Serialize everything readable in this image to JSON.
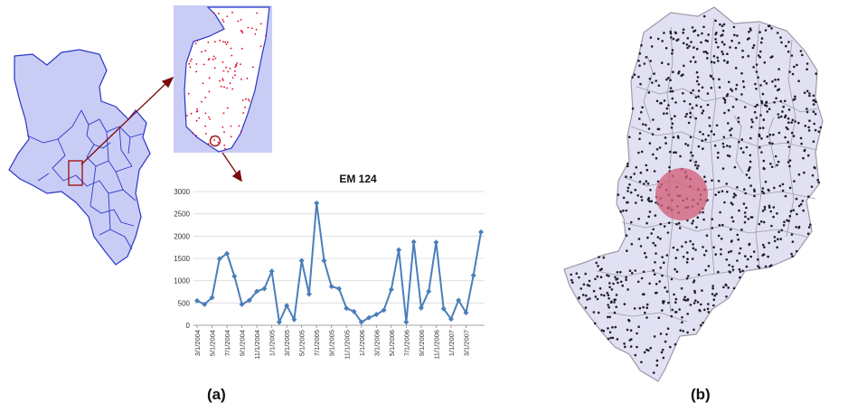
{
  "panels": {
    "a_label": "(a)",
    "b_label": "(b)"
  },
  "colors": {
    "map_fill": "#c9cdf5",
    "map_line": "#2a35c8",
    "marker_red": "#e0001b",
    "arrow": "#7a0a0a",
    "series": "#4a7ebb",
    "grid": "#d9d9d9",
    "map_b_fill": "#e2e1f3",
    "map_b_line": "#9a9aa8",
    "map_b_dots": "#1e1e2a",
    "highlight": "#d2607a"
  },
  "chart_data": {
    "type": "line",
    "title": "EM 124",
    "xlabel": "",
    "ylabel": "",
    "ylim": [
      0,
      3000
    ],
    "yticks": [
      0,
      500,
      1000,
      1500,
      2000,
      2500,
      3000
    ],
    "xtick_labels": [
      "3/1/2004",
      "5/1/2004",
      "7/1/2004",
      "9/1/2004",
      "11/1/2004",
      "1/1/2005",
      "3/1/2005",
      "5/1/2005",
      "7/1/2005",
      "9/1/2005",
      "11/1/2005",
      "1/1/2006",
      "3/1/2006",
      "5/1/2006",
      "7/1/2006",
      "9/1/2006",
      "11/1/2006",
      "1/1/2007",
      "3/1/2007"
    ],
    "grid": true,
    "legend": "none",
    "values": [
      550,
      470,
      620,
      1490,
      1610,
      1100,
      470,
      560,
      760,
      820,
      1210,
      70,
      440,
      130,
      1450,
      700,
      2740,
      1450,
      870,
      820,
      380,
      310,
      70,
      170,
      240,
      340,
      800,
      1690,
      70,
      1870,
      390,
      760,
      1860,
      370,
      140,
      560,
      280,
      1120,
      2090
    ]
  }
}
